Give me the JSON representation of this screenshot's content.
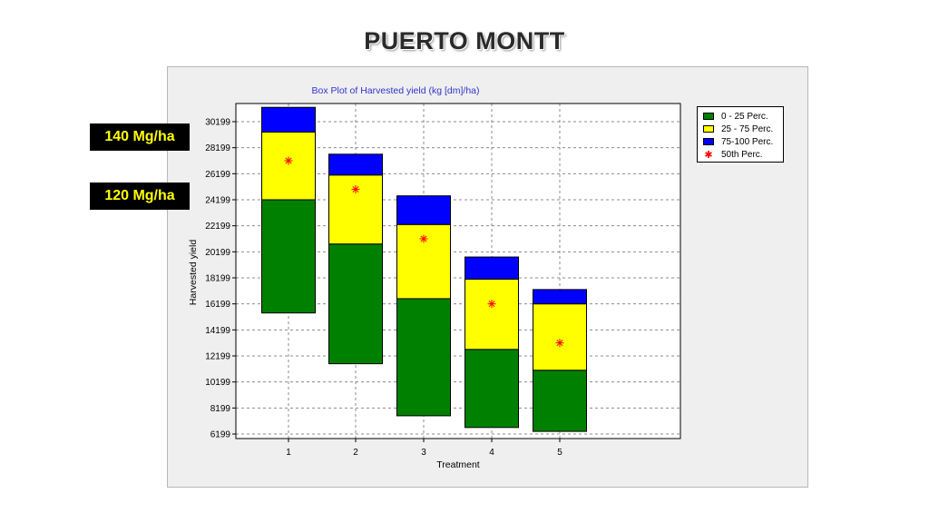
{
  "slide": {
    "title": "PUERTO MONTT",
    "callouts": [
      "140 Mg/ha",
      "120 Mg/ha"
    ]
  },
  "colors": {
    "p0_25": "#008000",
    "p25_75": "#ffff00",
    "p75_100": "#0000ff",
    "median": "#ff0000",
    "callout_bg": "#000000",
    "callout_text": "#ffff00",
    "title_color": "#3333cc"
  },
  "chart_data": {
    "type": "bar",
    "title": "Box Plot of Harvested yield (kg [dm]/ha)",
    "xlabel": "Treatment",
    "ylabel": "Harvested yield",
    "categories": [
      "1",
      "2",
      "3",
      "4",
      "5"
    ],
    "yticks": [
      "6199",
      "8199",
      "10199",
      "12199",
      "14199",
      "16199",
      "18199",
      "20199",
      "22199",
      "24199",
      "26199",
      "28199",
      "30199"
    ],
    "ylim": [
      6199,
      31600
    ],
    "grid": true,
    "legend_position": "right",
    "legend": [
      "0 - 25 Perc.",
      "25 - 75 Perc.",
      "75-100 Perc.",
      "50th Perc."
    ],
    "series": [
      {
        "name": "0 - 25 Perc.",
        "low": [
          15500,
          11600,
          7600,
          6700,
          6400
        ],
        "high": [
          24200,
          20800,
          16600,
          12700,
          11100
        ]
      },
      {
        "name": "25 - 75 Perc.",
        "low": [
          24200,
          20800,
          16600,
          12700,
          11100
        ],
        "high": [
          29400,
          26100,
          22300,
          18100,
          16200
        ]
      },
      {
        "name": "75-100 Perc.",
        "low": [
          29400,
          26100,
          22300,
          18100,
          16200
        ],
        "high": [
          31300,
          27700,
          24500,
          19800,
          17300
        ]
      }
    ],
    "median": [
      27200,
      25000,
      21200,
      16200,
      13200
    ]
  }
}
